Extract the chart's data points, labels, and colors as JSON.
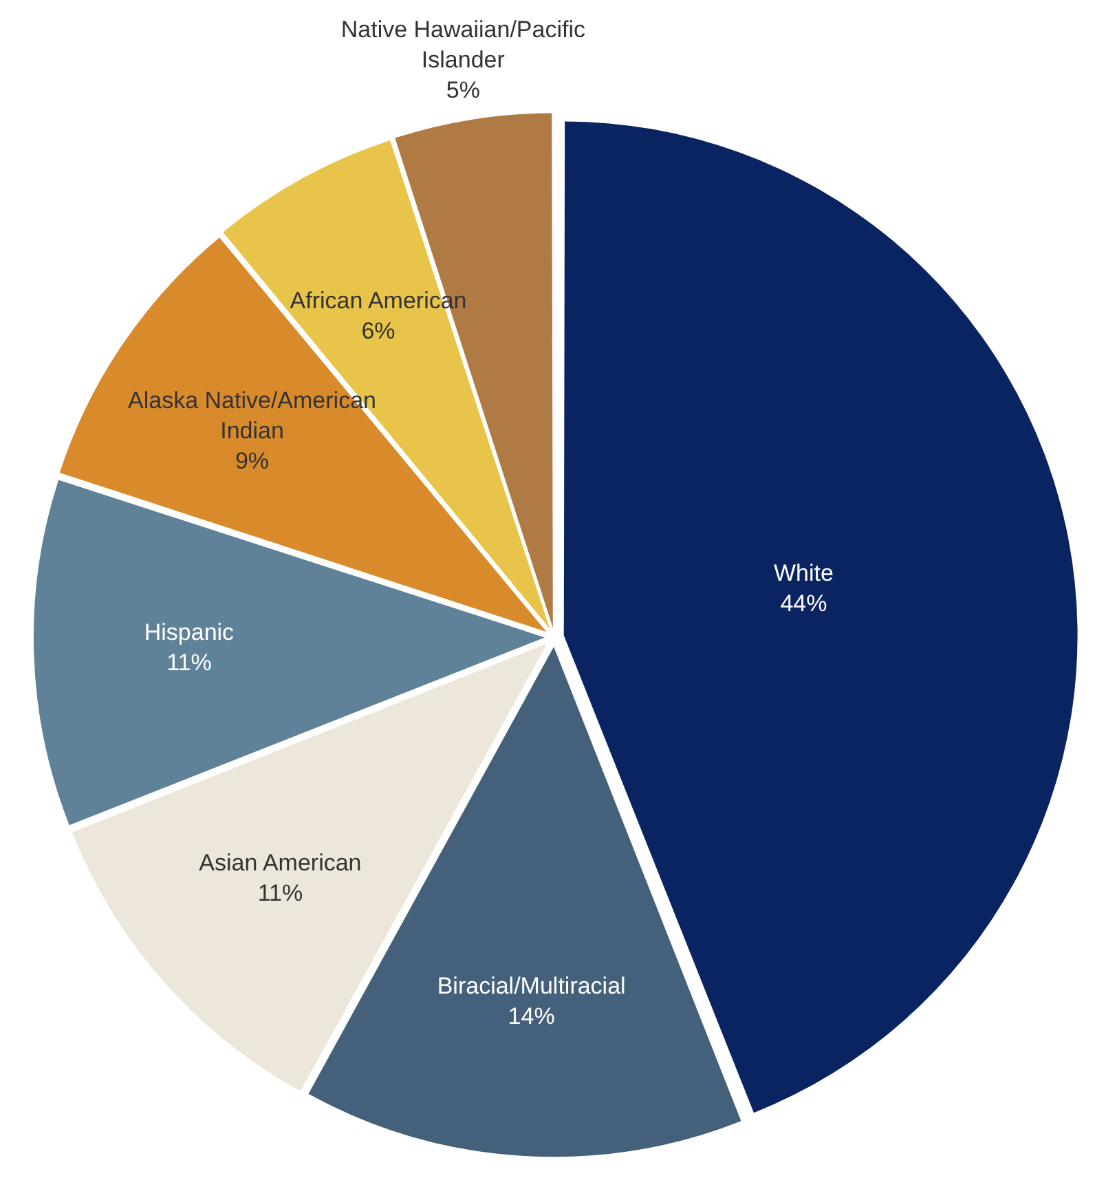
{
  "chart_data": {
    "type": "pie",
    "categories": [
      "White",
      "Biracial/Multiracial",
      "Asian American",
      "Hispanic",
      "Alaska Native/American Indian",
      "African American",
      "Native Hawaiian/Pacific Islander"
    ],
    "values": [
      44,
      14,
      11,
      11,
      9,
      6,
      5
    ],
    "value_labels": [
      "44%",
      "14%",
      "11%",
      "11%",
      "9%",
      "6%",
      "5%"
    ],
    "colors": [
      "#0a2461",
      "#44607a",
      "#ede6da",
      "#5f8299",
      "#d98b2b",
      "#e9c44a",
      "#b07a45"
    ],
    "legend": false
  }
}
